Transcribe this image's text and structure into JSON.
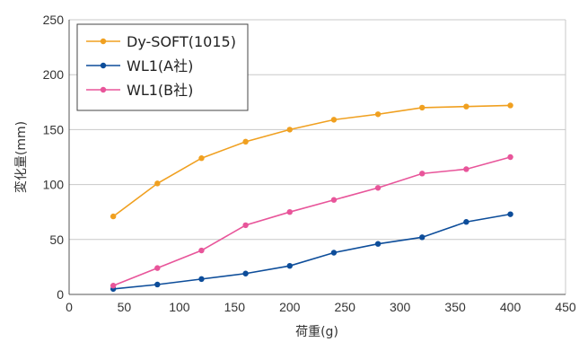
{
  "chart_data": {
    "type": "line",
    "xlabel": "荷重(g)",
    "ylabel": "変化量(mm)",
    "xlim": [
      0,
      450
    ],
    "ylim": [
      0,
      250
    ],
    "x_ticks": [
      0,
      50,
      100,
      150,
      200,
      250,
      300,
      350,
      400,
      450
    ],
    "y_ticks": [
      0,
      50,
      100,
      150,
      200,
      250
    ],
    "grid": "horizontal",
    "legend_position": "top-left",
    "series": [
      {
        "name": "Dy-SOFT(1015)",
        "color": "#f0a020",
        "x": [
          40,
          80,
          120,
          160,
          200,
          240,
          280,
          320,
          360,
          400
        ],
        "y": [
          71,
          101,
          124,
          139,
          150,
          159,
          164,
          170,
          171,
          172
        ]
      },
      {
        "name": "WL1(A社)",
        "color": "#0d4d9a",
        "x": [
          40,
          80,
          120,
          160,
          200,
          240,
          280,
          320,
          360,
          400
        ],
        "y": [
          5,
          9,
          14,
          19,
          26,
          38,
          46,
          52,
          66,
          73
        ]
      },
      {
        "name": "WL1(B社)",
        "color": "#e8559a",
        "x": [
          40,
          80,
          120,
          160,
          200,
          240,
          280,
          320,
          360,
          400
        ],
        "y": [
          8,
          24,
          40,
          63,
          75,
          86,
          97,
          110,
          114,
          125
        ]
      }
    ]
  }
}
